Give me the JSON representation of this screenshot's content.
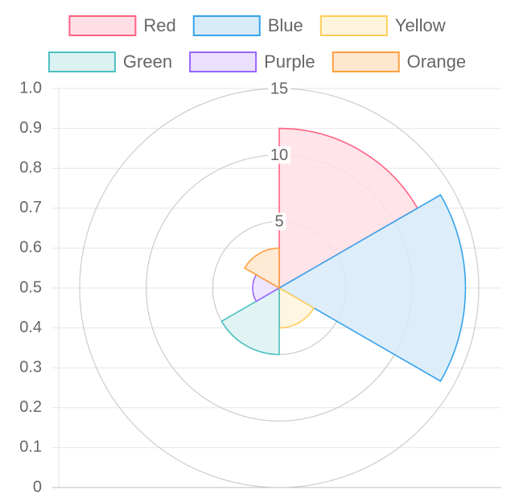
{
  "chart_data": {
    "type": "polarArea",
    "categories": [
      "Red",
      "Blue",
      "Yellow",
      "Green",
      "Purple",
      "Orange"
    ],
    "values": [
      12,
      14,
      3,
      5,
      2,
      3
    ],
    "colors": {
      "Red": {
        "fill": "#ffdfe5",
        "stroke": "#ff6384"
      },
      "Blue": {
        "fill": "#d7ebf9",
        "stroke": "#36a2eb"
      },
      "Yellow": {
        "fill": "#fff5dd",
        "stroke": "#ffcd56"
      },
      "Green": {
        "fill": "#dbf2f2",
        "stroke": "#4bc0c0"
      },
      "Purple": {
        "fill": "#ebe0ff",
        "stroke": "#9966ff"
      },
      "Orange": {
        "fill": "#ffe6ce",
        "stroke": "#ff9f40"
      }
    },
    "radial_ticks": [
      "5",
      "10",
      "15"
    ],
    "radial_max": 15,
    "cartesian_y_ticks": [
      "0",
      "0.1",
      "0.2",
      "0.3",
      "0.4",
      "0.5",
      "0.6",
      "0.7",
      "0.8",
      "0.9",
      "1.0"
    ],
    "ylim": [
      0,
      1
    ],
    "legend_position": "top",
    "grid": true
  }
}
